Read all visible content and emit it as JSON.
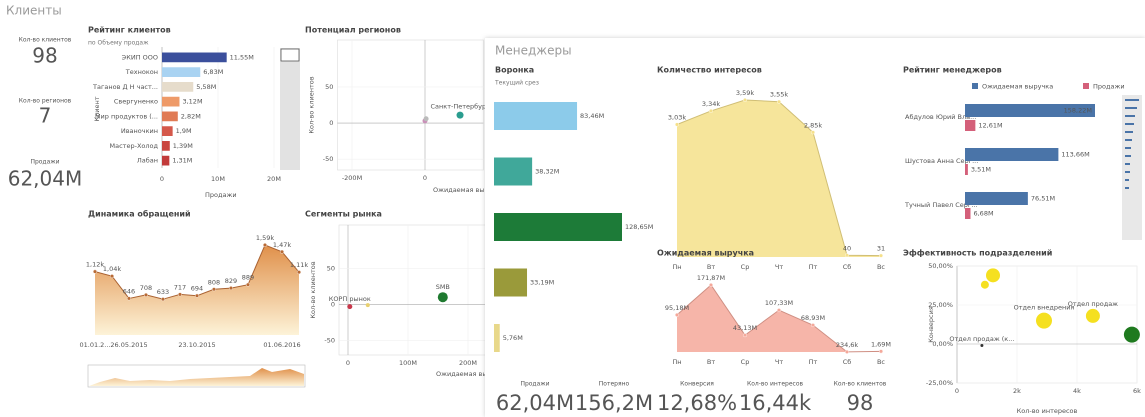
{
  "header": {
    "clients": "Клиенты",
    "managers": "Менеджеры"
  },
  "client_kpis": [
    {
      "label": "Кол-во клиентов",
      "value": "98"
    },
    {
      "label": "Кол-во регионов",
      "value": "7"
    },
    {
      "label": "Продажи",
      "value": "62,04M"
    }
  ],
  "manager_kpis": [
    {
      "label": "Продажи",
      "value": "62,04M"
    },
    {
      "label": "Потеряно",
      "value": "156,2M"
    },
    {
      "label": "Конверсия",
      "value": "12,68%"
    },
    {
      "label": "Кол-во интересов",
      "value": "16,44k"
    },
    {
      "label": "Кол-во клиентов",
      "value": "98"
    }
  ],
  "chart_data": [
    {
      "type": "hbar",
      "title": "Рейтинг клиентов",
      "subtitle": "по Объему продаж",
      "x_label": "Продажи",
      "y_label": "Клиент",
      "categories": [
        "ЭКИП ООО",
        "Технокон",
        "Таганов Д Н част...",
        "Свергуненко",
        "Мир продуктов (...",
        "Иваночкин",
        "Мастер-Холод",
        "Лабан"
      ],
      "values": [
        11550000,
        6830000,
        5580000,
        3120000,
        2820000,
        1900000,
        1390000,
        1310000
      ],
      "value_labels": [
        "11,55M",
        "6,83M",
        "5,58M",
        "3,12M",
        "2,82M",
        "1,9M",
        "1,39M",
        "1,31M"
      ],
      "colors": [
        "#3b4f9c",
        "#a9d3f2",
        "#e6dccb",
        "#ee9a68",
        "#e07b55",
        "#d4584a",
        "#c9463f",
        "#c23b3a"
      ],
      "xlim": [
        0,
        21000000
      ],
      "xticks": [
        0,
        {
          "value": 10000000,
          "label": "10M"
        },
        {
          "value": 20000000,
          "label": "20M"
        }
      ]
    },
    {
      "type": "scatter",
      "title": "Потенциал регионов",
      "x_label": "Ожидаемая выру",
      "y_label": "Кол-во клиентов",
      "x": [
        96000000,
        0,
        3000000
      ],
      "values": [
        11,
        3,
        6
      ],
      "sizes": [
        3.5,
        2.5,
        2.5
      ],
      "labels": [
        "Санкт-Петербург",
        null,
        null
      ],
      "colors": [
        "#2a9d8f",
        "#c990b8",
        "#bbbbbb"
      ],
      "xlim": [
        -240000000,
        160000000
      ],
      "xticks": [
        {
          "value": -200000000,
          "label": "-200M"
        },
        0
      ],
      "ylim": [
        -65,
        115
      ],
      "yticks": [
        -50,
        0,
        50
      ]
    },
    {
      "type": "area",
      "title": "Динамика обращений",
      "gradient": true,
      "categories": [
        "01.01.2...",
        null,
        "26.05.2015",
        null,
        null,
        null,
        "23.10.2015",
        null,
        null,
        null,
        null,
        "01.06.2016",
        null
      ],
      "values": [
        1120,
        1040,
        646,
        708,
        633,
        717,
        694,
        808,
        829,
        889,
        1590,
        1470,
        1110
      ],
      "value_labels": [
        "1,12k",
        "1,04k",
        "646",
        "708",
        "633",
        "717",
        "694",
        "808",
        "829",
        "889",
        "1,59k",
        "1,47k",
        "1,11k"
      ],
      "color": "#e8a060"
    },
    {
      "type": "scatter",
      "title": "Сегменты рынка",
      "x_label": "Ожидаемая вы",
      "y_label": "Кол-во клиентов",
      "x": [
        3000000,
        33000000,
        158000000
      ],
      "values": [
        -3,
        -1,
        10
      ],
      "sizes": [
        2.5,
        2,
        5
      ],
      "labels": [
        "КОРП рынок",
        null,
        "SMB"
      ],
      "colors": [
        "#c8374a",
        "#e8d070",
        "#1f7a30"
      ],
      "xlim": [
        -15000000,
        230000000
      ],
      "xticks": [
        0,
        {
          "value": 100000000,
          "label": "100M"
        },
        {
          "value": 200000000,
          "label": "200M"
        }
      ],
      "ylim": [
        -70,
        110
      ],
      "yticks": [
        -50,
        0,
        50
      ]
    },
    {
      "type": "funnel",
      "title": "Воронка",
      "subtitle": "Текущий срез",
      "values": [
        83.46,
        38.32,
        128.65,
        33.19,
        5.76
      ],
      "value_labels": [
        "83,46M",
        "38,32M",
        "128,65M",
        "33,19M",
        "5,76M"
      ],
      "colors": [
        "#8ccbea",
        "#40a89a",
        "#1d7b38",
        "#9a9a3a",
        "#e8d88a"
      ]
    },
    {
      "type": "area",
      "title": "Количество интересов",
      "categories": [
        "Пн",
        "Вт",
        "Ср",
        "Чт",
        "Пт",
        "Сб",
        "Вс"
      ],
      "values": [
        3030,
        3340,
        3590,
        3550,
        2850,
        40,
        31
      ],
      "value_labels": [
        "3,03k",
        "3,34k",
        "3,59k",
        "3,55k",
        "2,85k",
        "40",
        "31"
      ],
      "color": "#f5e08a"
    },
    {
      "type": "area",
      "title": "Ожидаемая выручка",
      "categories": [
        "Пн",
        "Вт",
        "Ср",
        "Чт",
        "Пт",
        "Сб",
        "Вс"
      ],
      "values": [
        95.18,
        171.87,
        43.13,
        107.33,
        68.93,
        0.2346,
        1.69
      ],
      "value_labels": [
        "95,18M",
        "171,87M",
        "43,13M",
        "107,33M",
        "68,93M",
        "234,6k",
        "1,69M"
      ],
      "color": "#f4a89a"
    },
    {
      "type": "grouped_hbar",
      "title": "Рейтинг менеджеров",
      "categories": [
        "Абдулов Юрий Вла...",
        "Шустова Анна Серг...",
        "Тучный Павел Серг..."
      ],
      "series": [
        {
          "name": "Ожидаемая выручка",
          "color": "#4a74a8",
          "values": [
            158.22,
            113.66,
            76.51
          ],
          "value_labels": [
            "158,22M",
            "113,66M",
            "76,51M"
          ]
        },
        {
          "name": "Продажи",
          "color": "#d4607a",
          "values": [
            12.61,
            3.51,
            6.68
          ],
          "value_labels": [
            "12,61M",
            "3,51M",
            "6,68M"
          ]
        }
      ]
    },
    {
      "type": "scatter",
      "title": "Эффективность подразделений",
      "x_label": "Кол-во интересов",
      "y_label": "Конверсия",
      "x": [
        1200,
        930,
        2900,
        4530,
        830,
        5830
      ],
      "values": [
        44,
        38,
        15,
        18,
        -1,
        6
      ],
      "sizes": [
        7,
        4,
        8,
        7,
        1.5,
        8
      ],
      "labels": [
        null,
        null,
        "Отдел внедрения",
        "Отдел продаж",
        "Отдел продаж (к...",
        null
      ],
      "colors": [
        "#f5e020",
        "#f5e020",
        "#f5e020",
        "#f5e020",
        "#333333",
        "#1f7a1f"
      ],
      "xlim": [
        0,
        6000
      ],
      "xticks": [
        0,
        {
          "value": 2000,
          "label": "2k"
        },
        {
          "value": 4000,
          "label": "4k"
        },
        {
          "value": 6000,
          "label": "6k"
        }
      ],
      "ylim": [
        -25,
        50
      ],
      "yticks": [
        {
          "value": 50,
          "label": "50,00%"
        },
        {
          "value": 25,
          "label": "25,00%"
        },
        {
          "value": 0,
          "label": "0,00%"
        },
        {
          "value": -25,
          "label": "-25,00%"
        }
      ]
    }
  ]
}
